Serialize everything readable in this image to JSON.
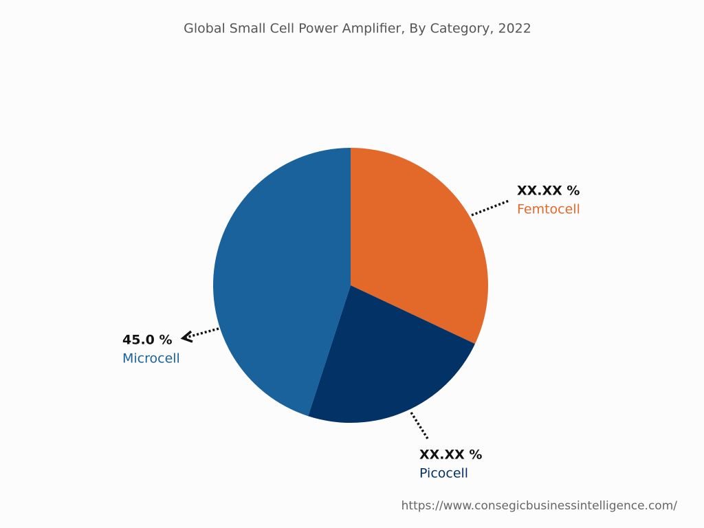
{
  "chart_data": {
    "type": "pie",
    "title": "Global Small Cell Power Amplifier, By Category, 2022",
    "categories": [
      "Femtocell",
      "Picocell",
      "Microcell"
    ],
    "values": [
      32,
      23,
      45
    ],
    "value_labels": [
      "XX.XX %",
      "XX.XX %",
      "45.0 %"
    ],
    "colors": [
      "#e2692a",
      "#023266",
      "#1a629b"
    ],
    "source": "https://www.consegicbusinessintelligence.com/"
  }
}
